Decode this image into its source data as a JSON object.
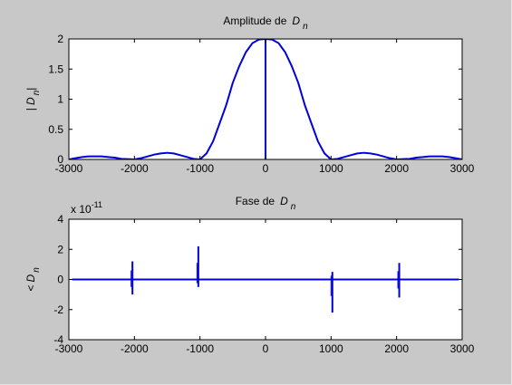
{
  "figure": {
    "background": "#c8c8c8",
    "axes_background": "#ffffff",
    "line_color": "#0000dd"
  },
  "chart_data": [
    {
      "type": "line",
      "title": "Amplitude de",
      "title_symbol": "D",
      "title_sub": "n",
      "ylabel": "| D",
      "ylabel_sub": "n",
      "ylabel_end": "|",
      "xlim": [
        -3000,
        3000
      ],
      "ylim": [
        0,
        2
      ],
      "xticks": [
        -3000,
        -2000,
        -1000,
        0,
        1000,
        2000,
        3000
      ],
      "xtick_labels": [
        "-3000",
        "-2000",
        "-1000",
        "0",
        "1000",
        "2000",
        "3000"
      ],
      "yticks": [
        0,
        0.5,
        1,
        1.5,
        2
      ],
      "ytick_labels": [
        "0",
        "0.5",
        "1",
        "1.5",
        "2"
      ],
      "grid": false,
      "series": [
        {
          "description": "sampled sinc magnitude",
          "x": [
            -3000,
            -2900,
            -2800,
            -2700,
            -2600,
            -2500,
            -2400,
            -2300,
            -2200,
            -2100,
            -2000,
            -1900,
            -1800,
            -1700,
            -1600,
            -1500,
            -1400,
            -1300,
            -1200,
            -1100,
            -1000,
            -900,
            -800,
            -700,
            -600,
            -500,
            -400,
            -300,
            -200,
            -100,
            0,
            100,
            200,
            300,
            400,
            500,
            600,
            700,
            800,
            900,
            1000,
            1100,
            1200,
            1300,
            1400,
            1500,
            1600,
            1700,
            1800,
            1900,
            2000,
            2100,
            2200,
            2300,
            2400,
            2500,
            2600,
            2700,
            2800,
            2900,
            3000
          ],
          "y": [
            0,
            0.02,
            0.04,
            0.05,
            0.05,
            0.05,
            0.04,
            0.03,
            0.01,
            0.005,
            0,
            0.02,
            0.05,
            0.08,
            0.1,
            0.11,
            0.1,
            0.07,
            0.04,
            0.01,
            0,
            0.1,
            0.3,
            0.6,
            0.9,
            1.27,
            1.55,
            1.78,
            1.93,
            1.99,
            2,
            1.99,
            1.93,
            1.78,
            1.55,
            1.27,
            0.9,
            0.6,
            0.3,
            0.1,
            0,
            0.01,
            0.04,
            0.07,
            0.1,
            0.11,
            0.1,
            0.08,
            0.05,
            0.02,
            0,
            0.005,
            0.01,
            0.03,
            0.04,
            0.05,
            0.05,
            0.05,
            0.04,
            0.02,
            0
          ]
        },
        {
          "description": "vertical line at origin",
          "x": [
            0,
            0
          ],
          "y": [
            0,
            2
          ]
        }
      ]
    },
    {
      "type": "line",
      "title": "Fase de",
      "title_symbol": "D",
      "title_sub": "n",
      "ylabel": "< D",
      "ylabel_sub": "n",
      "scale_label": "x 10",
      "scale_exp": "-11",
      "xlim": [
        -3000,
        3000
      ],
      "ylim": [
        -4,
        4
      ],
      "xticks": [
        -3000,
        -2000,
        -1000,
        0,
        1000,
        2000,
        3000
      ],
      "xtick_labels": [
        "-3000",
        "-2000",
        "-1000",
        "0",
        "1000",
        "2000",
        "3000"
      ],
      "yticks": [
        -4,
        -2,
        0,
        2,
        4
      ],
      "ytick_labels": [
        "-4",
        "-2",
        "0",
        "2",
        "4"
      ],
      "grid": false,
      "series": [
        {
          "description": "phase (near zero)",
          "x": [
            -2950,
            2950
          ],
          "y": [
            0,
            0
          ]
        }
      ],
      "spikes": [
        {
          "x": -2030,
          "ymin": -1.0,
          "ymax": 1.2
        },
        {
          "x": -1025,
          "ymin": -0.5,
          "ymax": 2.2
        },
        {
          "x": 1020,
          "ymin": -2.2,
          "ymax": 0.5
        },
        {
          "x": 2040,
          "ymin": -1.2,
          "ymax": 1.1
        }
      ]
    }
  ]
}
